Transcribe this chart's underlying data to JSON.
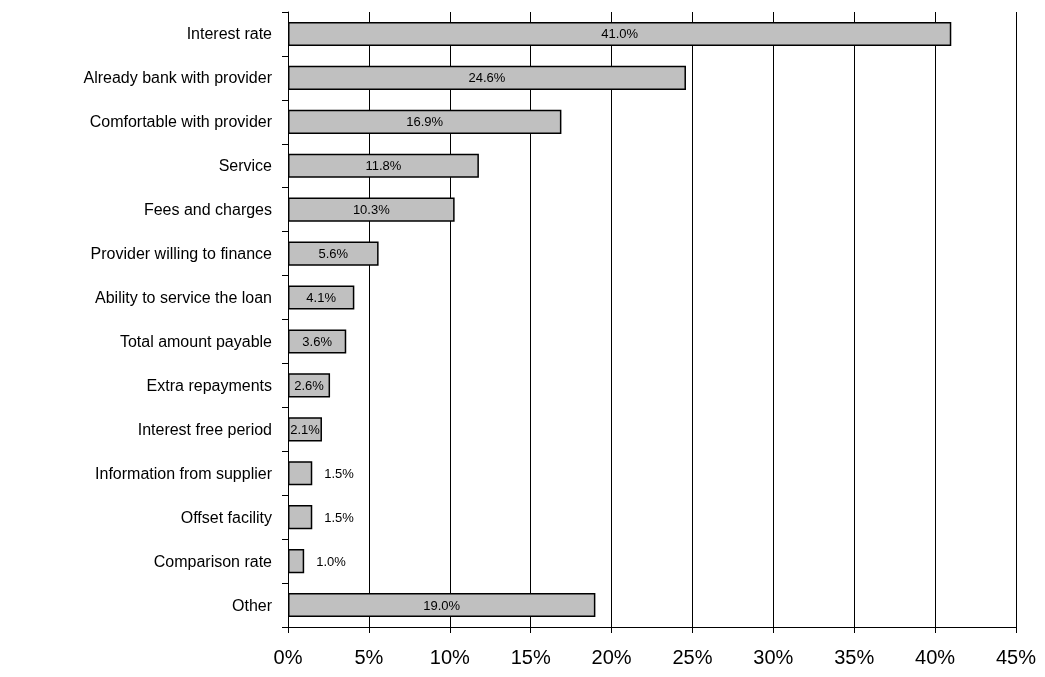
{
  "chart_data": {
    "type": "bar",
    "orientation": "horizontal",
    "categories": [
      "Interest rate",
      "Already bank with provider",
      "Comfortable with provider",
      "Service",
      "Fees and charges",
      "Provider willing to finance",
      "Ability to service the loan",
      "Total amount payable",
      "Extra repayments",
      "Interest free period",
      "Information from supplier",
      "Offset facility",
      "Comparison rate",
      "Other"
    ],
    "values": [
      41.0,
      24.6,
      16.9,
      11.8,
      10.3,
      5.6,
      4.1,
      3.6,
      2.6,
      2.1,
      1.5,
      1.5,
      1.0,
      19.0
    ],
    "value_labels": [
      "41.0%",
      "24.6%",
      "16.9%",
      "11.8%",
      "10.3%",
      "5.6%",
      "4.1%",
      "3.6%",
      "2.6%",
      "2.1%",
      "1.5%",
      "1.5%",
      "1.0%",
      "19.0%"
    ],
    "color": "#c0c0c0",
    "xlim": [
      0,
      45
    ],
    "xticks": [
      {
        "value": 0,
        "label": "0%"
      },
      {
        "value": 5,
        "label": "5%"
      },
      {
        "value": 10,
        "label": "10%"
      },
      {
        "value": 15,
        "label": "15%"
      },
      {
        "value": 20,
        "label": "20%"
      },
      {
        "value": 25,
        "label": "25%"
      },
      {
        "value": 30,
        "label": "30%"
      },
      {
        "value": 35,
        "label": "35%"
      },
      {
        "value": 40,
        "label": "40%"
      },
      {
        "value": 45,
        "label": "45%"
      }
    ],
    "grid": "x"
  }
}
